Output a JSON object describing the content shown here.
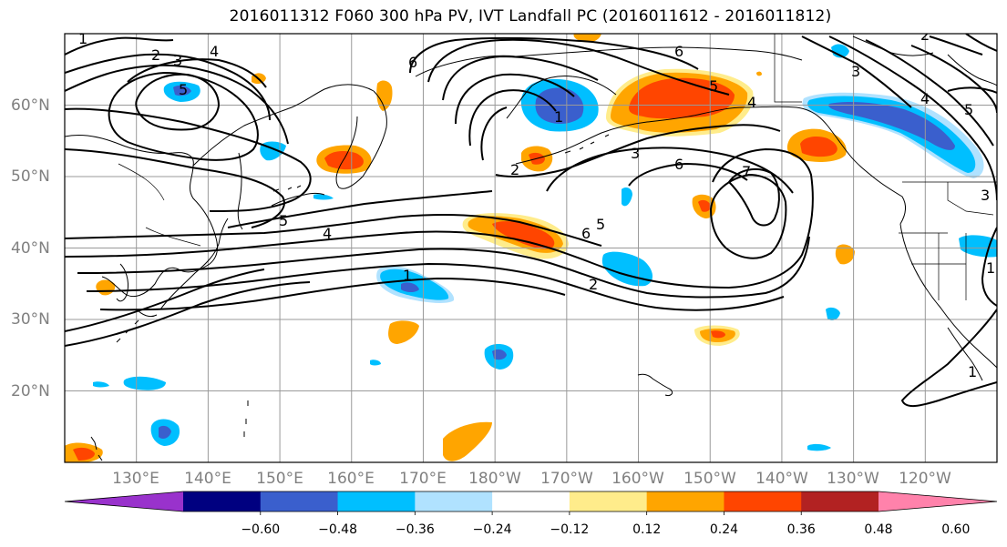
{
  "title": "2016011312 F060 300 hPa PV, IVT Landfall PC (2016011612 - 2016011812)",
  "map": {
    "projection": "PlateCarree",
    "lon_range": [
      120,
      250
    ],
    "lat_range": [
      10,
      70
    ],
    "gridlines": true,
    "coastlines": true,
    "borders": true
  },
  "axis_labels": {
    "lat": [
      "60°N",
      "50°N",
      "40°N",
      "30°N",
      "20°N"
    ],
    "lon": [
      "130°E",
      "140°E",
      "150°E",
      "160°E",
      "170°E",
      "180°W",
      "170°W",
      "160°W",
      "150°W",
      "140°W",
      "130°W",
      "120°W"
    ]
  },
  "contour_labels": [
    "1",
    "2",
    "3",
    "4",
    "6",
    "5",
    "1",
    "2",
    "3",
    "6",
    "5",
    "4",
    "1",
    "4",
    "5",
    "6",
    "7",
    "6",
    "5",
    "2",
    "1",
    "3",
    "4",
    "5",
    "3",
    "2",
    "1"
  ],
  "colorbar": {
    "ticks": [
      "−0.60",
      "−0.48",
      "−0.36",
      "−0.24",
      "−0.12",
      "0.12",
      "0.24",
      "0.36",
      "0.48",
      "0.60"
    ],
    "colors": [
      "#9932cc",
      "#000080",
      "#3a5fcd",
      "#00bfff",
      "#b0e2ff",
      "#ffffff",
      "#ffec8b",
      "#ffa500",
      "#ff4500",
      "#b22222",
      "#ff82ab"
    ],
    "extend": "both"
  },
  "shading_colors": {
    "pos1": "#ffec8b",
    "pos2": "#ffa500",
    "pos3": "#ff4500",
    "neg1": "#b0e2ff",
    "neg2": "#00bfff",
    "neg3": "#3a5fcd"
  }
}
